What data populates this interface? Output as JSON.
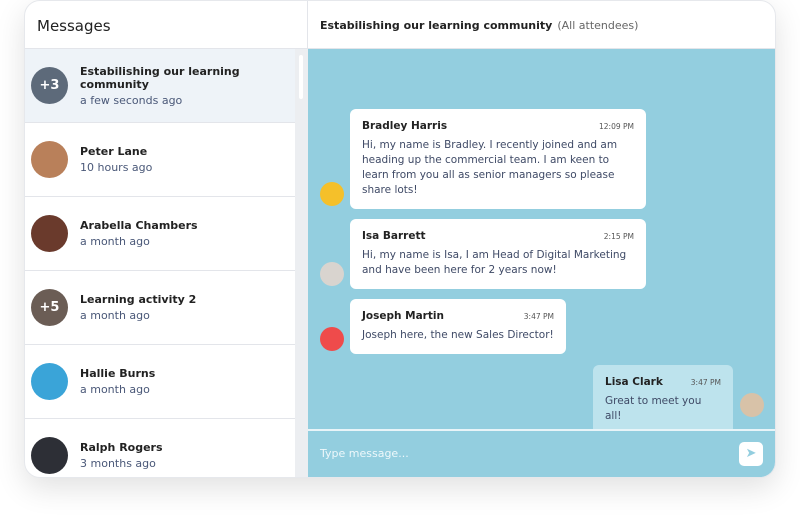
{
  "sidebar": {
    "title": "Messages",
    "items": [
      {
        "name": "Estabilishing our learning community",
        "time": "a few seconds ago",
        "badge": "+3",
        "color": "#5d6a7a",
        "active": true
      },
      {
        "name": "Peter Lane",
        "time": "10 hours ago",
        "color": "#b9805a"
      },
      {
        "name": "Arabella Chambers",
        "time": "a month ago",
        "color": "#6a3a2c"
      },
      {
        "name": "Learning activity 2",
        "time": "a month ago",
        "badge": "+5",
        "color": "#6b5d55"
      },
      {
        "name": "Hallie Burns",
        "time": "a month ago",
        "color": "#3aa4d8"
      },
      {
        "name": "Ralph Rogers",
        "time": "3 months ago",
        "color": "#2d2f36"
      }
    ]
  },
  "chat": {
    "title": "Estabilishing our learning community",
    "audience": "(All attendees)",
    "messages": [
      {
        "sender": "Bradley Harris",
        "time": "12:09 PM",
        "text": "Hi, my name is Bradley. I recently joined and am heading up the commercial team. I am keen to learn from you all as senior managers so please share lots!",
        "avatar_color": "#f5c02a"
      },
      {
        "sender": "Isa Barrett",
        "time": "2:15 PM",
        "text": "Hi, my name is Isa, I am Head of Digital Marketing and have been here for 2 years now!",
        "avatar_color": "#d9d4cf"
      },
      {
        "sender": "Joseph Martin",
        "time": "3:47 PM",
        "text": "Joseph here, the new Sales Director!",
        "avatar_color": "#ef4b4b"
      },
      {
        "sender": "Lisa Clark",
        "time": "3:47 PM",
        "text": "Great to meet you all!",
        "avatar_color": "#d8c2a8"
      }
    ],
    "input_placeholder": "Type message...",
    "send_icon": "send-icon"
  },
  "colors": {
    "chat_bg": "#93cedf"
  }
}
